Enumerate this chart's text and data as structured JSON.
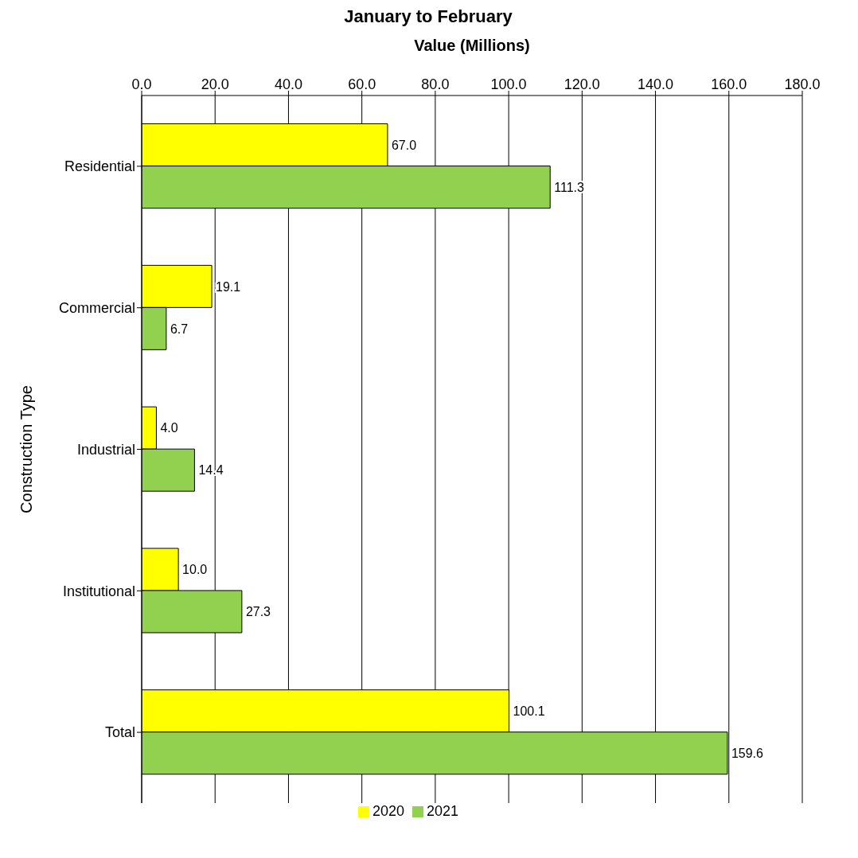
{
  "chart_data": {
    "type": "bar",
    "orientation": "horizontal",
    "title": "January to February",
    "xlabel": "Value (Millions)",
    "ylabel": "Construction Type",
    "categories": [
      "Residential",
      "Commercial",
      "Industrial",
      "Institutional",
      "Total"
    ],
    "series": [
      {
        "name": "2020",
        "color": "#ffff00",
        "values": [
          67.0,
          19.1,
          4.0,
          10.0,
          100.1
        ],
        "value_labels": [
          "67.0",
          "19.1",
          "4.0",
          "10.0",
          "100.1"
        ]
      },
      {
        "name": "2021",
        "color": "#92d050",
        "values": [
          111.3,
          6.7,
          14.4,
          27.3,
          159.6
        ],
        "value_labels": [
          "111.3",
          "6.7",
          "14.4",
          "27.3",
          "159.6"
        ]
      }
    ],
    "xlim": [
      0,
      180
    ],
    "xticks": [
      {
        "value": 0,
        "label": "0.0"
      },
      {
        "value": 20,
        "label": "20.0"
      },
      {
        "value": 40,
        "label": "40.0"
      },
      {
        "value": 60,
        "label": "60.0"
      },
      {
        "value": 80,
        "label": "80.0"
      },
      {
        "value": 100,
        "label": "100.0"
      },
      {
        "value": 120,
        "label": "120.0"
      },
      {
        "value": 140,
        "label": "140.0"
      },
      {
        "value": 160,
        "label": "160.0"
      },
      {
        "value": 180,
        "label": "180.0"
      }
    ],
    "grid": "x",
    "legend": "bottom"
  }
}
